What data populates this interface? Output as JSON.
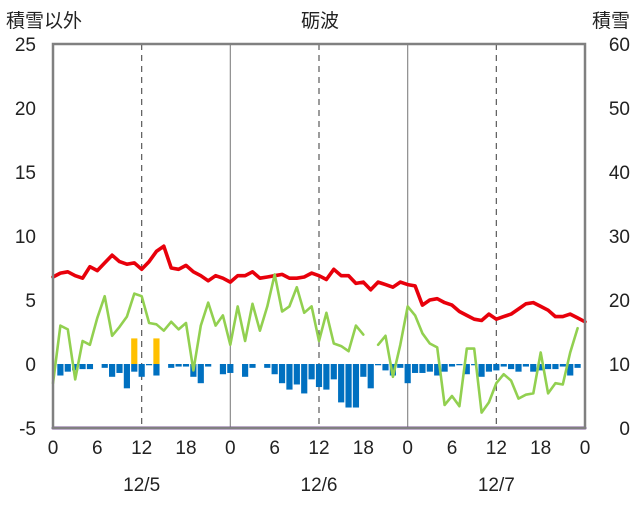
{
  "chart_data": {
    "type": "line",
    "title": "砺波",
    "y_left_label": "積雪以外",
    "y_right_label": "積雪",
    "y_left_ticks": [
      "25",
      "20",
      "15",
      "10",
      "5",
      "0",
      "-5"
    ],
    "y_right_ticks": [
      "60",
      "50",
      "40",
      "30",
      "20",
      "10",
      "0"
    ],
    "ylim_left": [
      -5,
      25
    ],
    "ylim_right": [
      0,
      60
    ],
    "x_tick_labels": [
      "0",
      "6",
      "12",
      "18",
      "0",
      "6",
      "12",
      "18",
      "0",
      "6",
      "12",
      "18",
      "0"
    ],
    "date_labels": [
      "12/5",
      "12/6",
      "12/7"
    ],
    "x_range_hours": [
      0,
      72
    ],
    "grid": "vertical dashed lines every 12 h, solid lines at day boundaries",
    "colors": {
      "red": "#e8000b",
      "green": "#92d050",
      "blue": "#0070c0",
      "orange": "#ffc000",
      "purple": "#7030a0",
      "frame": "#808080"
    },
    "series": [
      {
        "color_key": "red",
        "axis": "left",
        "type": "line",
        "values": [
          [
            0,
            6.8
          ],
          [
            1,
            7.1
          ],
          [
            2,
            7.2
          ],
          [
            3,
            6.9
          ],
          [
            4,
            6.7
          ],
          [
            5,
            7.6
          ],
          [
            6,
            7.3
          ],
          [
            7,
            7.9
          ],
          [
            8,
            8.5
          ],
          [
            9,
            8.0
          ],
          [
            10,
            7.8
          ],
          [
            11,
            7.9
          ],
          [
            12,
            7.4
          ],
          [
            13,
            8.0
          ],
          [
            14,
            8.8
          ],
          [
            15,
            9.2
          ],
          [
            16,
            7.5
          ],
          [
            17,
            7.4
          ],
          [
            18,
            7.7
          ],
          [
            19,
            7.2
          ],
          [
            20,
            6.9
          ],
          [
            21,
            6.5
          ],
          [
            22,
            6.9
          ],
          [
            23,
            6.7
          ],
          [
            24,
            6.4
          ],
          [
            25,
            6.9
          ],
          [
            26,
            6.9
          ],
          [
            27,
            7.2
          ],
          [
            28,
            6.7
          ],
          [
            29,
            6.8
          ],
          [
            30,
            6.9
          ],
          [
            31,
            7.0
          ],
          [
            32,
            6.7
          ],
          [
            33,
            6.7
          ],
          [
            34,
            6.8
          ],
          [
            35,
            7.1
          ],
          [
            36,
            6.9
          ],
          [
            37,
            6.6
          ],
          [
            38,
            7.4
          ],
          [
            39,
            6.9
          ],
          [
            40,
            6.9
          ],
          [
            41,
            6.3
          ],
          [
            42,
            6.4
          ],
          [
            43,
            5.8
          ],
          [
            44,
            6.4
          ],
          [
            45,
            6.2
          ],
          [
            46,
            6.0
          ],
          [
            47,
            6.4
          ],
          [
            48,
            6.2
          ],
          [
            49,
            6.1
          ],
          [
            50,
            4.6
          ],
          [
            51,
            5.0
          ],
          [
            52,
            5.1
          ],
          [
            53,
            4.8
          ],
          [
            54,
            4.6
          ],
          [
            55,
            4.1
          ],
          [
            56,
            3.8
          ],
          [
            57,
            3.5
          ],
          [
            58,
            3.4
          ],
          [
            59,
            3.9
          ],
          [
            60,
            3.5
          ],
          [
            61,
            3.7
          ],
          [
            62,
            3.9
          ],
          [
            63,
            4.3
          ],
          [
            64,
            4.7
          ],
          [
            65,
            4.8
          ],
          [
            66,
            4.5
          ],
          [
            67,
            4.2
          ],
          [
            68,
            3.7
          ],
          [
            69,
            3.7
          ],
          [
            70,
            3.9
          ],
          [
            71,
            3.6
          ],
          [
            72,
            3.3
          ]
        ]
      },
      {
        "color_key": "green",
        "axis": "left",
        "type": "line",
        "values": [
          [
            0,
            -1.5
          ],
          [
            1,
            3.0
          ],
          [
            2,
            2.7
          ],
          [
            3,
            -1.2
          ],
          [
            4,
            1.8
          ],
          [
            5,
            1.5
          ],
          [
            6,
            3.6
          ],
          [
            7,
            5.3
          ],
          [
            8,
            2.2
          ],
          [
            9,
            2.9
          ],
          [
            10,
            3.7
          ],
          [
            11,
            5.5
          ],
          [
            12,
            5.3
          ],
          [
            13,
            3.2
          ],
          [
            14,
            3.1
          ],
          [
            15,
            2.6
          ],
          [
            16,
            3.3
          ],
          [
            17,
            2.7
          ],
          [
            18,
            3.2
          ],
          [
            19,
            -0.5
          ],
          [
            20,
            3.0
          ],
          [
            21,
            4.8
          ],
          [
            22,
            3.0
          ],
          [
            23,
            3.8
          ],
          [
            24,
            1.5
          ],
          [
            25,
            4.5
          ],
          [
            26,
            1.8
          ],
          [
            27,
            4.7
          ],
          [
            28,
            2.6
          ],
          [
            29,
            4.5
          ],
          [
            30,
            7.0
          ],
          [
            31,
            4.1
          ],
          [
            32,
            4.5
          ],
          [
            33,
            6.0
          ],
          [
            34,
            4.0
          ],
          [
            35,
            4.5
          ],
          [
            36,
            1.8
          ],
          [
            37,
            4.0
          ],
          [
            38,
            1.6
          ],
          [
            39,
            1.4
          ],
          [
            40,
            1.0
          ],
          [
            41,
            3.0
          ],
          [
            42,
            2.3
          ],
          [
            43,
            null
          ],
          [
            44,
            1.5
          ],
          [
            45,
            2.2
          ],
          [
            46,
            -1.0
          ],
          [
            47,
            1.5
          ],
          [
            48,
            4.5
          ],
          [
            49,
            3.8
          ],
          [
            50,
            2.4
          ],
          [
            51,
            1.6
          ],
          [
            52,
            1.3
          ],
          [
            53,
            -3.2
          ],
          [
            54,
            -2.5
          ],
          [
            55,
            -3.3
          ],
          [
            56,
            1.2
          ],
          [
            57,
            1.2
          ],
          [
            58,
            -3.8
          ],
          [
            59,
            -3.0
          ],
          [
            60,
            -1.5
          ],
          [
            61,
            -0.8
          ],
          [
            62,
            -1.3
          ],
          [
            63,
            -2.7
          ],
          [
            64,
            -2.4
          ],
          [
            65,
            -2.3
          ],
          [
            66,
            0.9
          ],
          [
            67,
            -2.3
          ],
          [
            68,
            -1.5
          ],
          [
            69,
            -1.6
          ],
          [
            70,
            0.9
          ],
          [
            71,
            2.8
          ]
        ]
      },
      {
        "color_key": "blue",
        "axis": "left",
        "type": "bar",
        "values": [
          [
            1,
            -0.9
          ],
          [
            2,
            -0.6
          ],
          [
            3,
            -0.5
          ],
          [
            4,
            -0.4
          ],
          [
            5,
            -0.4
          ],
          [
            7,
            -0.3
          ],
          [
            8,
            -1.0
          ],
          [
            9,
            -0.7
          ],
          [
            10,
            -1.9
          ],
          [
            11,
            -0.6
          ],
          [
            12,
            -1.0
          ],
          [
            13,
            -0.1
          ],
          [
            14,
            -0.9
          ],
          [
            16,
            -0.3
          ],
          [
            17,
            -0.2
          ],
          [
            18,
            -0.2
          ],
          [
            19,
            -1.0
          ],
          [
            20,
            -1.5
          ],
          [
            21,
            -0.2
          ],
          [
            23,
            -0.8
          ],
          [
            24,
            -0.7
          ],
          [
            26,
            -1.0
          ],
          [
            27,
            -0.3
          ],
          [
            29,
            -0.3
          ],
          [
            30,
            -0.8
          ],
          [
            31,
            -1.5
          ],
          [
            32,
            -2.0
          ],
          [
            33,
            -1.6
          ],
          [
            34,
            -2.3
          ],
          [
            35,
            -1.2
          ],
          [
            36,
            -1.8
          ],
          [
            37,
            -2.0
          ],
          [
            38,
            -1.2
          ],
          [
            39,
            -3.0
          ],
          [
            40,
            -3.4
          ],
          [
            41,
            -3.4
          ],
          [
            42,
            -1.0
          ],
          [
            43,
            -1.9
          ],
          [
            44,
            -0.1
          ],
          [
            45,
            -0.5
          ],
          [
            46,
            -0.9
          ],
          [
            47,
            -0.3
          ],
          [
            48,
            -1.5
          ],
          [
            49,
            -0.7
          ],
          [
            50,
            -0.7
          ],
          [
            51,
            -0.6
          ],
          [
            52,
            -0.9
          ],
          [
            53,
            -0.6
          ],
          [
            54,
            -0.2
          ],
          [
            55,
            -0.1
          ],
          [
            56,
            -0.8
          ],
          [
            57,
            -0.1
          ],
          [
            58,
            -1.0
          ],
          [
            59,
            -0.6
          ],
          [
            60,
            -0.5
          ],
          [
            61,
            -0.2
          ],
          [
            62,
            -0.4
          ],
          [
            63,
            -0.6
          ],
          [
            64,
            -0.2
          ],
          [
            65,
            -0.6
          ],
          [
            66,
            -0.5
          ],
          [
            67,
            -0.4
          ],
          [
            68,
            -0.4
          ],
          [
            69,
            -0.2
          ],
          [
            70,
            -0.9
          ],
          [
            71,
            -0.3
          ]
        ]
      },
      {
        "color_key": "orange",
        "axis": "left",
        "type": "bar",
        "values": [
          [
            11,
            2.0
          ],
          [
            14,
            2.0
          ]
        ]
      },
      {
        "color_key": "purple",
        "axis": "right",
        "type": "line",
        "values": [
          [
            0,
            0.0
          ],
          [
            72,
            0.0
          ]
        ]
      }
    ]
  }
}
